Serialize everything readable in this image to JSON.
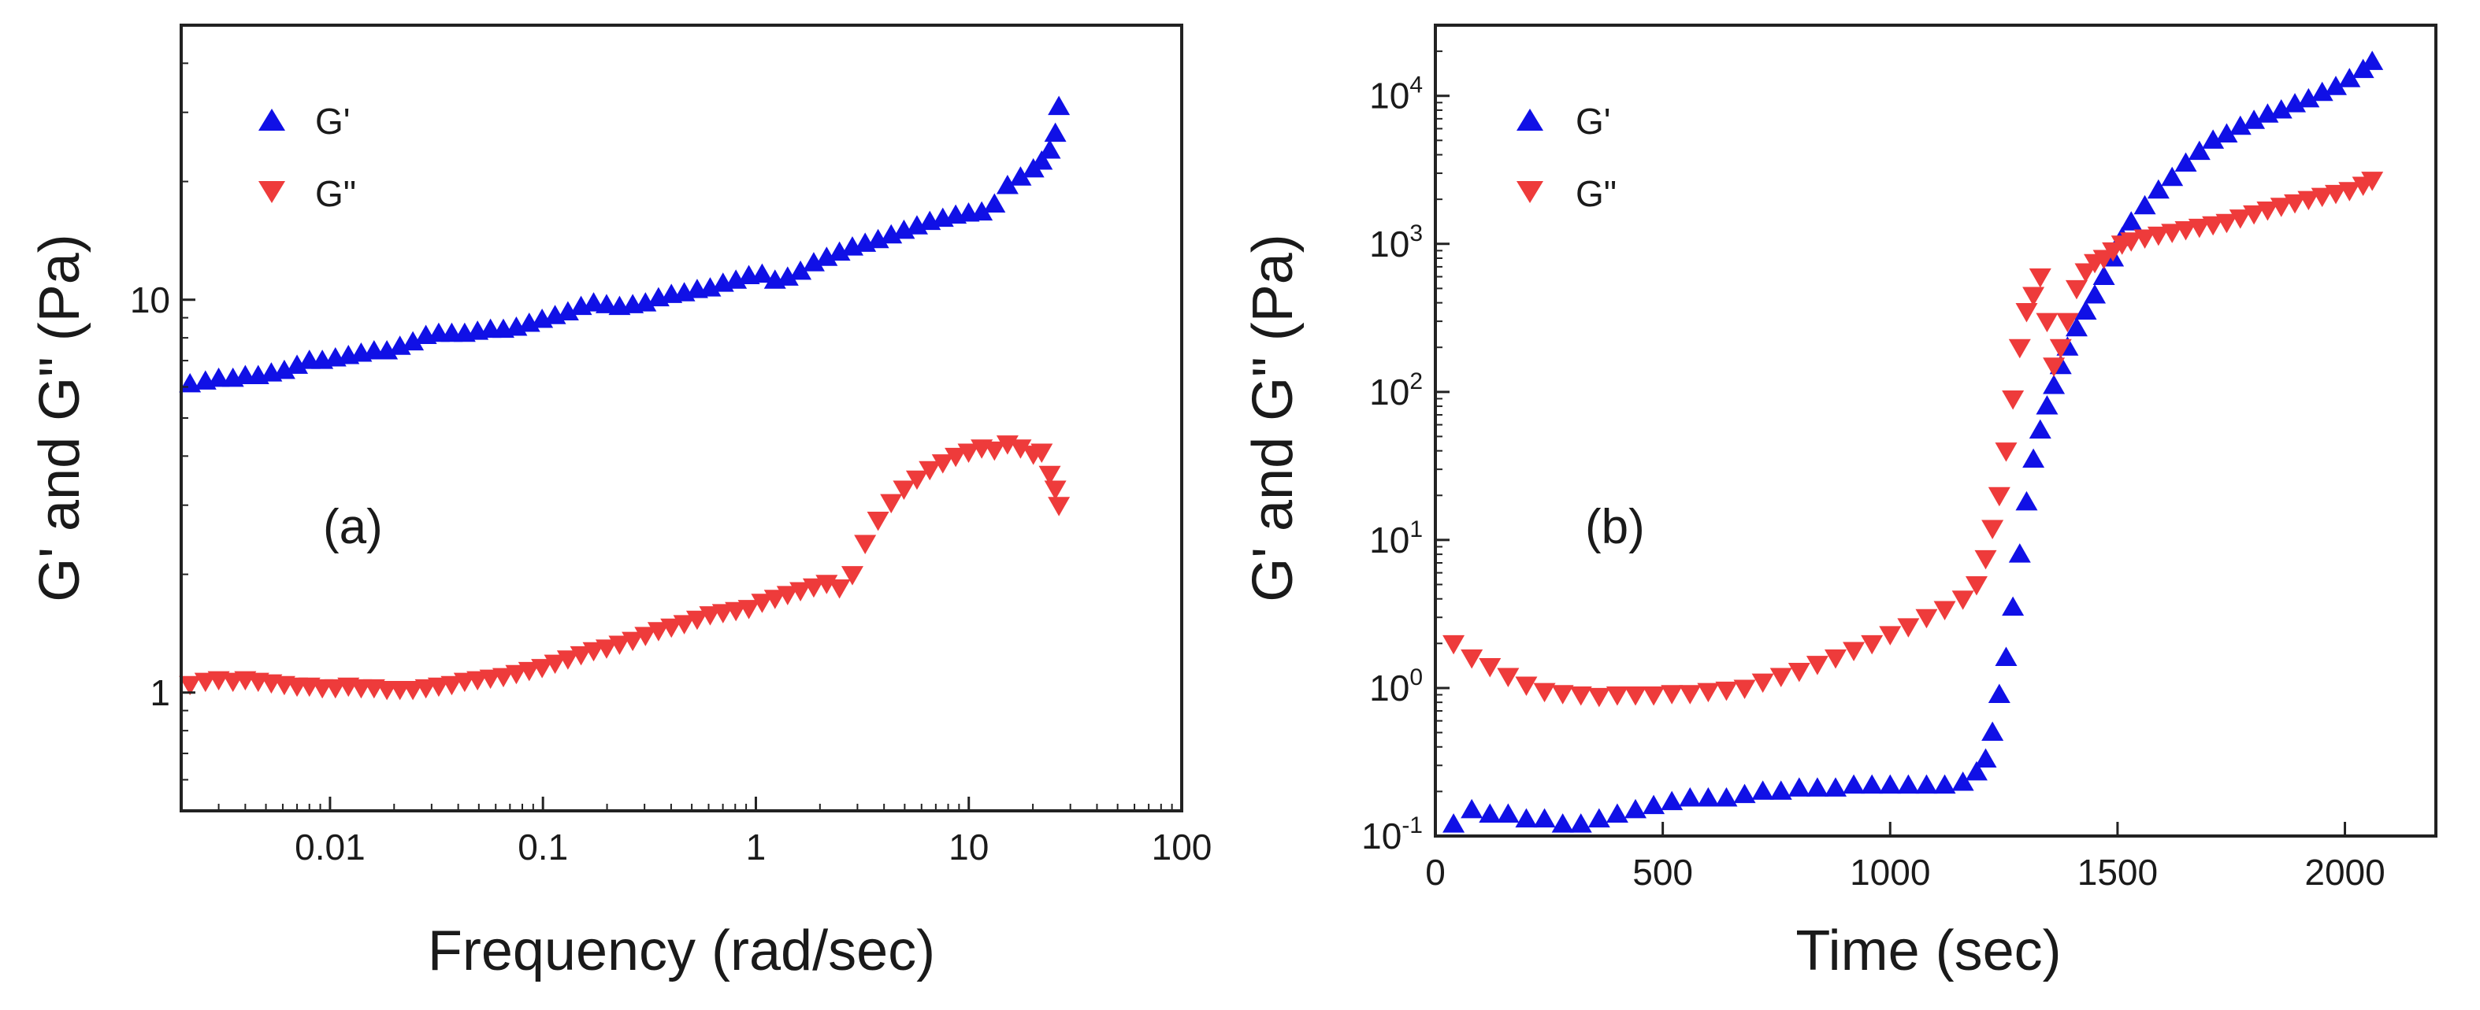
{
  "chart_data": [
    {
      "type": "scatter",
      "panel_label": "(a)",
      "xlabel": "Frequency (rad/sec)",
      "ylabel": "G' and G\" (Pa)",
      "xscale": "log",
      "yscale": "log",
      "xlim": [
        0.002,
        100
      ],
      "ylim": [
        0.5,
        50
      ],
      "xticks": [
        0.01,
        0.1,
        1,
        10,
        100
      ],
      "xtick_labels": [
        "0.01",
        "0.1",
        "1",
        "10",
        "100"
      ],
      "yticks": [
        1,
        10
      ],
      "ytick_labels": [
        "1",
        "10"
      ],
      "grid": false,
      "legend_position": "top-left",
      "series": [
        {
          "name": "G'",
          "marker": "triangle-up",
          "color": "#1010e6",
          "x": [
            0.0022,
            0.0026,
            0.003,
            0.0035,
            0.004,
            0.0046,
            0.0053,
            0.0061,
            0.007,
            0.008,
            0.0092,
            0.0106,
            0.0122,
            0.014,
            0.0161,
            0.0185,
            0.0213,
            0.0245,
            0.0282,
            0.0324,
            0.0373,
            0.0429,
            0.0493,
            0.0567,
            0.0652,
            0.075,
            0.0862,
            0.0991,
            0.114,
            0.131,
            0.151,
            0.173,
            0.199,
            0.229,
            0.264,
            0.303,
            0.349,
            0.401,
            0.461,
            0.53,
            0.61,
            0.701,
            0.806,
            0.927,
            1.07,
            1.23,
            1.41,
            1.62,
            1.87,
            2.15,
            2.47,
            2.84,
            3.26,
            3.75,
            4.32,
            4.96,
            5.71,
            6.56,
            7.55,
            8.68,
            9.98,
            11.5,
            13.2,
            15.2,
            17.5,
            20.1,
            22.0,
            24.0,
            25.5,
            26.5
          ],
          "y": [
            6.1,
            6.2,
            6.3,
            6.3,
            6.4,
            6.4,
            6.5,
            6.6,
            6.8,
            7.0,
            7.0,
            7.1,
            7.2,
            7.3,
            7.4,
            7.4,
            7.6,
            7.8,
            8.1,
            8.2,
            8.2,
            8.2,
            8.3,
            8.4,
            8.4,
            8.5,
            8.7,
            8.9,
            9.1,
            9.3,
            9.6,
            9.8,
            9.7,
            9.6,
            9.7,
            9.8,
            10.1,
            10.3,
            10.4,
            10.6,
            10.7,
            11.0,
            11.2,
            11.5,
            11.6,
            11.2,
            11.4,
            11.8,
            12.4,
            12.8,
            13.2,
            13.6,
            13.9,
            14.2,
            14.6,
            15.0,
            15.4,
            15.8,
            16.1,
            16.4,
            16.6,
            16.7,
            17.5,
            19.5,
            20.5,
            21.5,
            22.5,
            24.0,
            26.5,
            31.0
          ]
        },
        {
          "name": "G\"",
          "marker": "triangle-down",
          "color": "#ee3b3b",
          "x": [
            0.0022,
            0.0026,
            0.003,
            0.0035,
            0.004,
            0.0046,
            0.0053,
            0.0061,
            0.007,
            0.008,
            0.0092,
            0.0106,
            0.0122,
            0.014,
            0.0161,
            0.0185,
            0.0213,
            0.0245,
            0.0282,
            0.0324,
            0.0373,
            0.0429,
            0.0493,
            0.0567,
            0.0652,
            0.075,
            0.0862,
            0.0991,
            0.114,
            0.131,
            0.151,
            0.173,
            0.199,
            0.229,
            0.264,
            0.303,
            0.349,
            0.401,
            0.461,
            0.53,
            0.61,
            0.701,
            0.806,
            0.927,
            1.07,
            1.23,
            1.41,
            1.62,
            1.87,
            2.15,
            2.47,
            2.84,
            3.26,
            3.75,
            4.32,
            4.96,
            5.71,
            6.56,
            7.55,
            8.68,
            9.98,
            11.5,
            13.2,
            15.2,
            17.5,
            20.1,
            22.0,
            24.0,
            25.5,
            26.5
          ],
          "y": [
            1.05,
            1.07,
            1.08,
            1.07,
            1.08,
            1.07,
            1.06,
            1.05,
            1.04,
            1.04,
            1.03,
            1.03,
            1.04,
            1.03,
            1.03,
            1.02,
            1.02,
            1.02,
            1.03,
            1.04,
            1.05,
            1.07,
            1.08,
            1.09,
            1.1,
            1.12,
            1.14,
            1.16,
            1.19,
            1.22,
            1.25,
            1.28,
            1.3,
            1.33,
            1.36,
            1.4,
            1.44,
            1.47,
            1.5,
            1.54,
            1.58,
            1.6,
            1.62,
            1.64,
            1.7,
            1.74,
            1.78,
            1.82,
            1.86,
            1.9,
            1.85,
            2.0,
            2.4,
            2.75,
            3.05,
            3.3,
            3.5,
            3.7,
            3.85,
            4.0,
            4.1,
            4.2,
            4.15,
            4.3,
            4.2,
            4.05,
            4.1,
            3.6,
            3.3,
            3.0
          ]
        }
      ]
    },
    {
      "type": "scatter",
      "panel_label": "(b)",
      "xlabel": "Time (sec)",
      "ylabel": "G' and G\" (Pa)",
      "xscale": "linear",
      "yscale": "log",
      "xlim": [
        0,
        2200
      ],
      "ylim": [
        0.1,
        30000
      ],
      "xticks": [
        0,
        500,
        1000,
        1500,
        2000
      ],
      "xtick_labels": [
        "0",
        "500",
        "1000",
        "1500",
        "2000"
      ],
      "yticks": [
        0.1,
        1,
        10,
        100,
        1000,
        10000
      ],
      "ytick_labels": [
        {
          "base": "10",
          "exp": "-1"
        },
        {
          "base": "10",
          "exp": "0"
        },
        {
          "base": "10",
          "exp": "1"
        },
        {
          "base": "10",
          "exp": "2"
        },
        {
          "base": "10",
          "exp": "3"
        },
        {
          "base": "10",
          "exp": "4"
        }
      ],
      "grid": false,
      "legend_position": "top-left",
      "series": [
        {
          "name": "G'",
          "marker": "triangle-up",
          "color": "#1010e6",
          "x": [
            40,
            80,
            120,
            160,
            200,
            240,
            280,
            320,
            360,
            400,
            440,
            480,
            520,
            560,
            600,
            640,
            680,
            720,
            760,
            800,
            840,
            880,
            920,
            960,
            1000,
            1040,
            1080,
            1120,
            1160,
            1190,
            1210,
            1225,
            1240,
            1255,
            1270,
            1285,
            1300,
            1315,
            1330,
            1345,
            1360,
            1375,
            1390,
            1410,
            1430,
            1450,
            1470,
            1490,
            1510,
            1530,
            1560,
            1590,
            1620,
            1650,
            1680,
            1710,
            1740,
            1770,
            1800,
            1830,
            1860,
            1890,
            1920,
            1950,
            1980,
            2010,
            2040,
            2060
          ],
          "y": [
            0.12,
            0.15,
            0.14,
            0.14,
            0.13,
            0.13,
            0.12,
            0.12,
            0.13,
            0.14,
            0.15,
            0.16,
            0.17,
            0.18,
            0.18,
            0.18,
            0.19,
            0.2,
            0.2,
            0.21,
            0.21,
            0.21,
            0.22,
            0.22,
            0.22,
            0.22,
            0.22,
            0.22,
            0.23,
            0.27,
            0.33,
            0.5,
            0.9,
            1.6,
            3.5,
            8,
            18,
            35,
            55,
            80,
            110,
            150,
            200,
            270,
            350,
            450,
            600,
            800,
            1100,
            1400,
            1800,
            2300,
            2800,
            3500,
            4200,
            5000,
            5500,
            6200,
            6800,
            7500,
            8000,
            8800,
            9500,
            10500,
            11500,
            13000,
            15000,
            17000
          ]
        },
        {
          "name": "G\"",
          "marker": "triangle-down",
          "color": "#ee3b3b",
          "x": [
            40,
            80,
            120,
            160,
            200,
            240,
            280,
            320,
            360,
            400,
            440,
            480,
            520,
            560,
            600,
            640,
            680,
            720,
            760,
            800,
            840,
            880,
            920,
            960,
            1000,
            1040,
            1080,
            1120,
            1160,
            1190,
            1210,
            1225,
            1240,
            1255,
            1270,
            1285,
            1300,
            1315,
            1330,
            1345,
            1360,
            1375,
            1390,
            1410,
            1430,
            1450,
            1470,
            1490,
            1510,
            1530,
            1560,
            1590,
            1620,
            1650,
            1680,
            1710,
            1740,
            1770,
            1800,
            1830,
            1860,
            1890,
            1920,
            1950,
            1980,
            2010,
            2040,
            2060
          ],
          "y": [
            2.0,
            1.6,
            1.4,
            1.2,
            1.05,
            0.95,
            0.92,
            0.9,
            0.88,
            0.9,
            0.9,
            0.9,
            0.92,
            0.92,
            0.95,
            0.97,
            1.0,
            1.1,
            1.2,
            1.3,
            1.45,
            1.6,
            1.8,
            2.0,
            2.3,
            2.6,
            3.0,
            3.4,
            4.0,
            5.0,
            7.5,
            12,
            20,
            40,
            90,
            200,
            350,
            450,
            600,
            300,
            150,
            200,
            300,
            500,
            650,
            750,
            800,
            900,
            1000,
            1050,
            1100,
            1150,
            1200,
            1250,
            1300,
            1350,
            1400,
            1500,
            1600,
            1700,
            1800,
            1900,
            2000,
            2100,
            2200,
            2300,
            2500,
            2700
          ]
        }
      ]
    }
  ]
}
